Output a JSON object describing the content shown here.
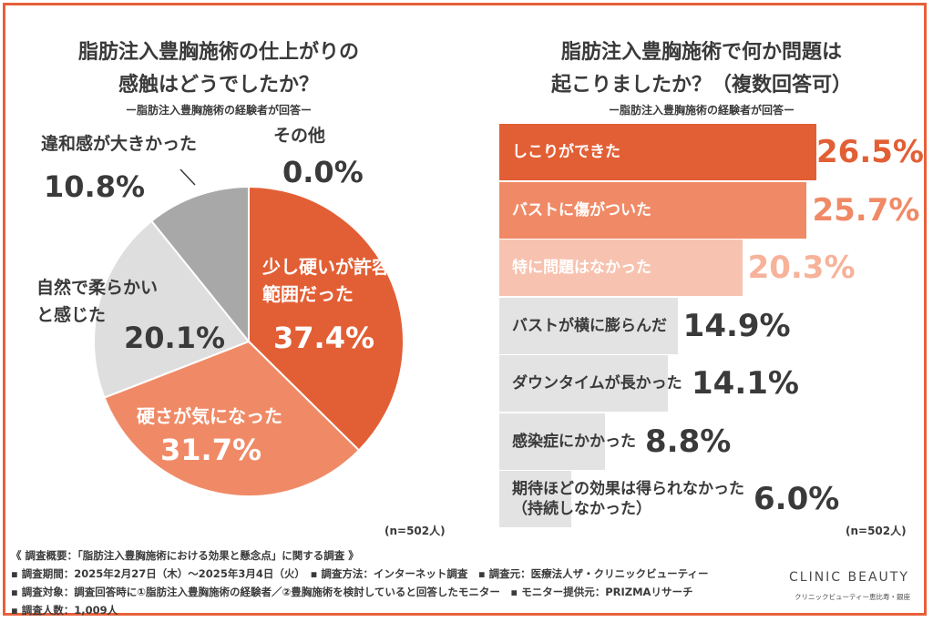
{
  "left": {
    "title_line1": "脂肪注入豊胸施術の仕上がりの",
    "title_line2": "感触はどうでしたか？",
    "subtitle": "ー脂肪注入豊胸施術の経験者が回答ー",
    "n": "(n=502人)"
  },
  "right": {
    "title_line1": "脂肪注入豊胸施術で何か問題は",
    "title_line2": "起こりましたか？（複数回答可）",
    "subtitle": "ー脂肪注入豊胸施術の経験者が回答ー",
    "n": "(n=502人)"
  },
  "chart_data": [
    {
      "type": "pie",
      "slices": [
        {
          "label_lines": [
            "少し硬いが許容",
            "範囲だった"
          ],
          "value": 37.4,
          "value_label": "37.4%",
          "color": "#e25f35"
        },
        {
          "label_lines": [
            "硬さが気になった"
          ],
          "value": 31.7,
          "value_label": "31.7%",
          "color": "#f08a66"
        },
        {
          "label_lines": [
            "自然で柔らかい",
            "と感じた"
          ],
          "value": 20.1,
          "value_label": "20.1%",
          "color": "#dedede"
        },
        {
          "label_lines": [
            "違和感が大きかった"
          ],
          "value": 10.8,
          "value_label": "10.8%",
          "color": "#a8a8a8"
        },
        {
          "label_lines": [
            "その他"
          ],
          "value": 0.0,
          "value_label": "0.0%",
          "color": "#888888"
        }
      ]
    },
    {
      "type": "bar",
      "orientation": "horizontal",
      "xlim": [
        0,
        26.5
      ],
      "categories": [
        [
          "しこりができた"
        ],
        [
          "バストに傷がついた"
        ],
        [
          "特に問題はなかった"
        ],
        [
          "バストが横に膨らんだ"
        ],
        [
          "ダウンタイムが長かった"
        ],
        [
          "感染症にかかった"
        ],
        [
          "期待ほどの効果は得られなかった",
          "（持続しなかった）"
        ]
      ],
      "values": [
        26.5,
        25.7,
        20.3,
        14.9,
        14.1,
        8.8,
        6.0
      ],
      "value_labels": [
        "26.5%",
        "25.7%",
        "20.3%",
        "14.9%",
        "14.1%",
        "8.8%",
        "6.0%"
      ],
      "bar_colors": [
        "#e25f35",
        "#f08a66",
        "#f7c3b0",
        "#e3e3e3",
        "#e3e3e3",
        "#e3e3e3",
        "#e3e3e3"
      ],
      "value_colors": [
        "#e25f35",
        "#f08a66",
        "#f7b29a",
        "#3a3a3a",
        "#3a3a3a",
        "#3a3a3a",
        "#3a3a3a"
      ],
      "label_colors": [
        "#ffffff",
        "#ffffff",
        "#ffffff",
        "#3a3a3a",
        "#3a3a3a",
        "#3a3a3a",
        "#3a3a3a"
      ]
    }
  ],
  "footer": {
    "line1": "《 調査概要：「脂肪注入豊胸施術における効果と懸念点」に関する調査 》",
    "line2": "▪ 調査期間：2025年2月27日（木）〜2025年3月4日（火）　▪ 調査方法：インターネット調査　▪ 調査元：医療法人ザ・クリニックビューティー",
    "line3": "▪ 調査対象：調査回答時に①脂肪注入豊胸施術の経験者／②豊胸施術を検討していると回答したモニター　▪ モニター提供元：PRIZMAリサーチ",
    "line4": "▪ 調査人数：1,009人"
  },
  "logo": {
    "name": "CLINIC BEAUTY",
    "sub": "クリニックビューティー恵比寿・銀座"
  }
}
